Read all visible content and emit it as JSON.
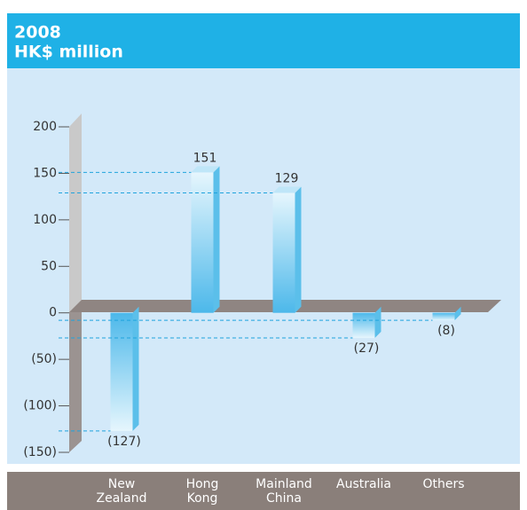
{
  "chart_data": {
    "type": "bar",
    "title": "2008",
    "subtitle": "HK$ million",
    "categories": [
      "New Zealand",
      "Hong Kong",
      "Mainland China",
      "Australia",
      "Others"
    ],
    "values": [
      -127,
      151,
      129,
      -27,
      -8
    ],
    "value_labels": [
      "(127)",
      "151",
      "129",
      "(27)",
      "(8)"
    ],
    "color": "#5bbfea",
    "ylim": [
      -150,
      200
    ],
    "yticks": [
      {
        "value": -150,
        "label": "(150)"
      },
      {
        "value": -100,
        "label": "(100)"
      },
      {
        "value": -50,
        "label": "(50)"
      },
      0,
      50,
      100,
      150,
      200
    ]
  }
}
